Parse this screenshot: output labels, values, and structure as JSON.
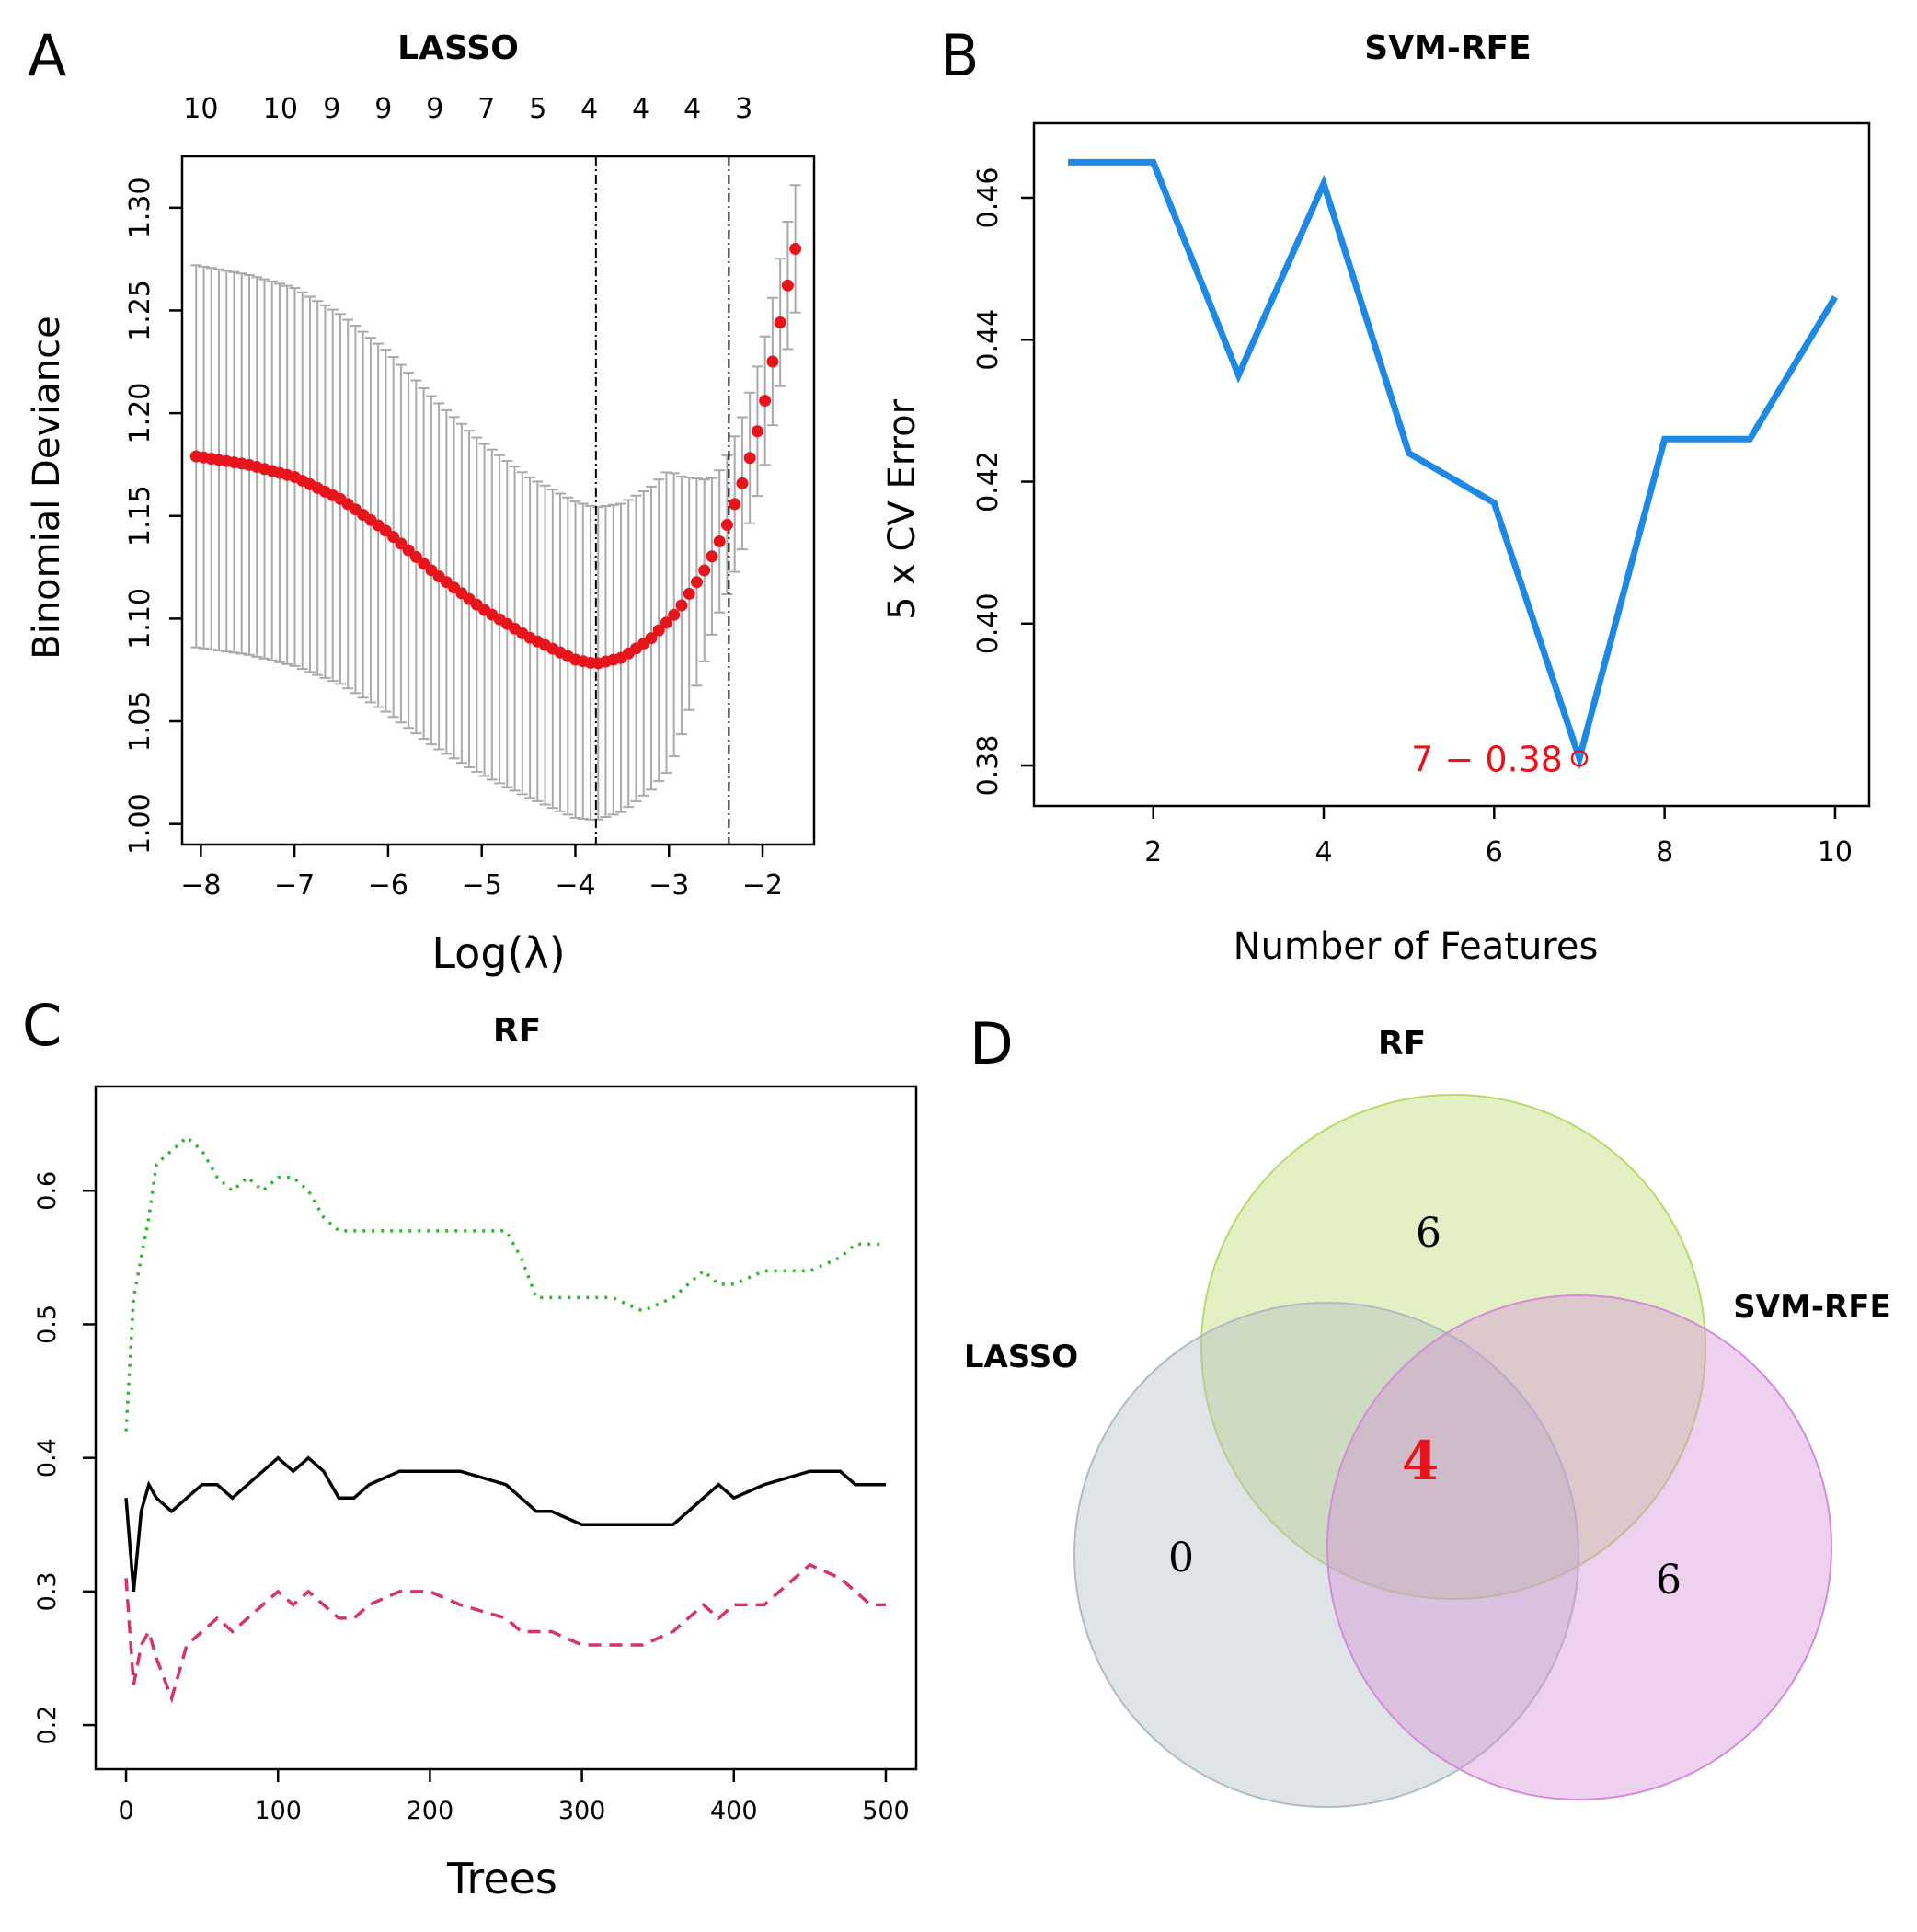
{
  "figure": {
    "panel_letters": [
      "A",
      "B",
      "C",
      "D"
    ]
  },
  "chart_data": [
    {
      "panel": "A",
      "type": "scatter",
      "title": "LASSO",
      "xlabel": "Log(λ)",
      "ylabel": "Binomial Deviance",
      "xlim": [
        -8.2,
        -1.45
      ],
      "ylim": [
        0.99,
        1.325
      ],
      "x_ticks": [
        -8,
        -7,
        -6,
        -5,
        -4,
        -3,
        -2
      ],
      "x_tick_labels": [
        "−8",
        "−7",
        "−6",
        "−5",
        "−4",
        "−3",
        "−2"
      ],
      "y_ticks": [
        1.0,
        1.05,
        1.1,
        1.15,
        1.2,
        1.25,
        1.3
      ],
      "y_tick_labels": [
        "1.00",
        "1.05",
        "1.10",
        "1.15",
        "1.20",
        "1.25",
        "1.30"
      ],
      "top_axis_labels": [
        {
          "x": -8.0,
          "label": "10"
        },
        {
          "x": -7.15,
          "label": "10"
        },
        {
          "x": -6.6,
          "label": "9"
        },
        {
          "x": -6.05,
          "label": "9"
        },
        {
          "x": -5.5,
          "label": "9"
        },
        {
          "x": -4.95,
          "label": "7"
        },
        {
          "x": -4.4,
          "label": "5"
        },
        {
          "x": -3.85,
          "label": "4"
        },
        {
          "x": -3.3,
          "label": "4"
        },
        {
          "x": -2.75,
          "label": "4"
        },
        {
          "x": -2.2,
          "label": "3"
        }
      ],
      "vlines": [
        -3.78,
        -2.36
      ],
      "point_color": "#e8141c",
      "errorbar_color": "#a9a9a9",
      "series": [
        {
          "x_start": -8.05,
          "x_end": -1.65,
          "n": 80,
          "curve_x": [
            -8.05,
            -7.5,
            -7.0,
            -6.5,
            -6.0,
            -5.5,
            -5.0,
            -4.5,
            -4.0,
            -3.78,
            -3.5,
            -3.2,
            -2.9,
            -2.6,
            -2.4,
            -2.2,
            -2.0,
            -1.8,
            -1.65
          ],
          "curve_y": [
            1.179,
            1.175,
            1.169,
            1.158,
            1.142,
            1.122,
            1.105,
            1.091,
            1.08,
            1.078,
            1.081,
            1.09,
            1.104,
            1.125,
            1.143,
            1.168,
            1.2,
            1.247,
            1.28
          ],
          "se_x": [
            -8.05,
            -7.0,
            -6.0,
            -5.0,
            -4.5,
            -4.0,
            -3.5,
            -3.0,
            -2.5,
            -2.2,
            -1.9,
            -1.65
          ],
          "se": [
            0.093,
            0.092,
            0.088,
            0.081,
            0.078,
            0.077,
            0.075,
            0.073,
            0.035,
            0.032,
            0.031,
            0.031
          ]
        }
      ]
    },
    {
      "panel": "B",
      "type": "line",
      "title": "SVM-RFE",
      "xlabel": "Number of Features",
      "ylabel": "5 x CV Error",
      "xlim": [
        0.6,
        10.4
      ],
      "ylim": [
        0.3743,
        0.4705
      ],
      "x_ticks": [
        2,
        4,
        6,
        8,
        10
      ],
      "y_ticks": [
        0.38,
        0.4,
        0.42,
        0.44,
        0.46
      ],
      "y_tick_labels": [
        "0.38",
        "0.40",
        "0.42",
        "0.44",
        "0.46"
      ],
      "line_color": "#1e88e5",
      "x": [
        1,
        2,
        3,
        4,
        5,
        6,
        7,
        8,
        9,
        10
      ],
      "y": [
        0.465,
        0.465,
        0.435,
        0.462,
        0.424,
        0.417,
        0.381,
        0.426,
        0.426,
        0.446
      ],
      "annotation": {
        "x": 7,
        "y": 0.381,
        "text": "7 − 0.38",
        "color": "#e8141c"
      }
    },
    {
      "panel": "C",
      "type": "line",
      "title": "RF",
      "xlabel": "Trees",
      "ylabel": "",
      "xlim": [
        -20,
        520
      ],
      "ylim": [
        0.167,
        0.678
      ],
      "x_ticks": [
        0,
        100,
        200,
        300,
        400,
        500
      ],
      "y_ticks": [
        0.2,
        0.3,
        0.4,
        0.5,
        0.6
      ],
      "y_tick_labels": [
        "0.2",
        "0.3",
        "0.4",
        "0.5",
        "0.6"
      ],
      "series": [
        {
          "color": "#2eb82e",
          "dash": "3,7",
          "x": [
            0,
            5,
            10,
            15,
            20,
            30,
            40,
            50,
            60,
            70,
            80,
            90,
            100,
            110,
            120,
            130,
            140,
            150,
            160,
            180,
            190,
            200,
            220,
            250,
            260,
            270,
            280,
            300,
            320,
            340,
            360,
            370,
            380,
            390,
            400,
            420,
            450,
            470,
            480,
            490,
            500
          ],
          "y": [
            0.42,
            0.52,
            0.55,
            0.58,
            0.62,
            0.63,
            0.64,
            0.63,
            0.61,
            0.6,
            0.61,
            0.6,
            0.61,
            0.61,
            0.6,
            0.58,
            0.57,
            0.57,
            0.57,
            0.57,
            0.57,
            0.57,
            0.57,
            0.57,
            0.55,
            0.52,
            0.52,
            0.52,
            0.52,
            0.51,
            0.52,
            0.53,
            0.54,
            0.53,
            0.53,
            0.54,
            0.54,
            0.55,
            0.56,
            0.56,
            0.56
          ]
        },
        {
          "color": "#000000",
          "dash": "",
          "x": [
            0,
            5,
            10,
            15,
            20,
            30,
            40,
            50,
            60,
            70,
            80,
            90,
            100,
            110,
            120,
            130,
            140,
            150,
            160,
            180,
            200,
            220,
            250,
            260,
            270,
            280,
            300,
            320,
            340,
            360,
            370,
            380,
            390,
            400,
            420,
            450,
            470,
            480,
            490,
            500
          ],
          "y": [
            0.37,
            0.3,
            0.36,
            0.38,
            0.37,
            0.36,
            0.37,
            0.38,
            0.38,
            0.37,
            0.38,
            0.39,
            0.4,
            0.39,
            0.4,
            0.39,
            0.37,
            0.37,
            0.38,
            0.39,
            0.39,
            0.39,
            0.38,
            0.37,
            0.36,
            0.36,
            0.35,
            0.35,
            0.35,
            0.35,
            0.36,
            0.37,
            0.38,
            0.37,
            0.38,
            0.39,
            0.39,
            0.38,
            0.38,
            0.38
          ]
        },
        {
          "color": "#d6336c",
          "dash": "14,9",
          "x": [
            0,
            5,
            10,
            15,
            20,
            30,
            40,
            50,
            60,
            70,
            80,
            90,
            100,
            110,
            120,
            130,
            140,
            150,
            160,
            180,
            200,
            220,
            250,
            260,
            270,
            280,
            300,
            320,
            340,
            360,
            370,
            380,
            390,
            400,
            420,
            450,
            470,
            480,
            490,
            500
          ],
          "y": [
            0.31,
            0.23,
            0.26,
            0.27,
            0.25,
            0.22,
            0.26,
            0.27,
            0.28,
            0.27,
            0.28,
            0.29,
            0.3,
            0.29,
            0.3,
            0.29,
            0.28,
            0.28,
            0.29,
            0.3,
            0.3,
            0.29,
            0.28,
            0.27,
            0.27,
            0.27,
            0.26,
            0.26,
            0.26,
            0.27,
            0.28,
            0.29,
            0.28,
            0.29,
            0.29,
            0.32,
            0.31,
            0.3,
            0.29,
            0.29
          ]
        }
      ]
    },
    {
      "panel": "D",
      "type": "venn",
      "title": "RF",
      "sets": [
        {
          "name": "RF",
          "color": "#b9da6b"
        },
        {
          "name": "LASSO",
          "color": "#aebcc4"
        },
        {
          "name": "SVM-RFE",
          "color": "#d48bd8"
        }
      ],
      "regions": {
        "RF_only": "6",
        "LASSO_only": "0",
        "SVM_RFE_only": "6",
        "center": "4"
      }
    }
  ]
}
